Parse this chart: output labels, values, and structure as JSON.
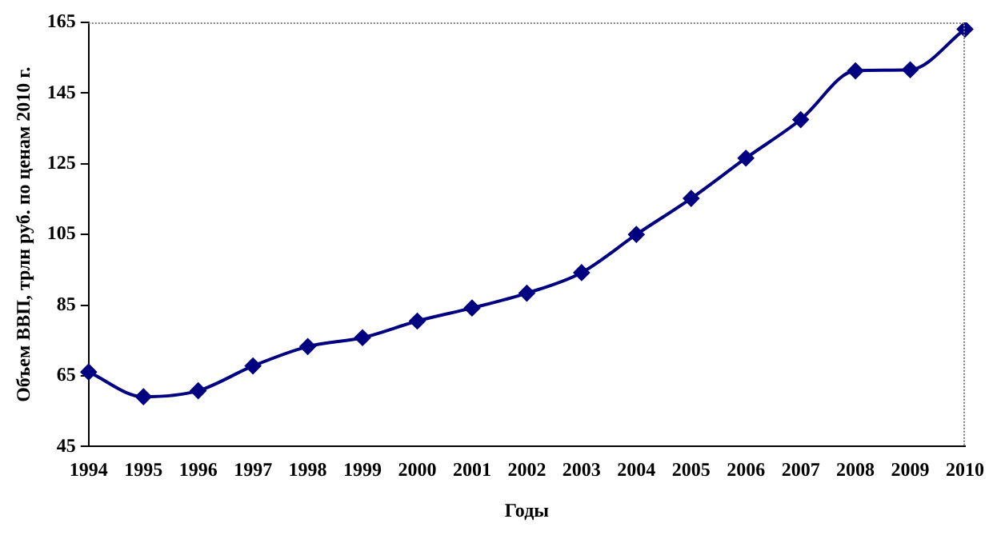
{
  "chart_data": {
    "type": "line",
    "xlabel": "Годы",
    "ylabel": "Объем ВВП, трлн руб. по ценам 2010 г.",
    "categories": [
      "1994",
      "1995",
      "1996",
      "1997",
      "1998",
      "1999",
      "2000",
      "2001",
      "2002",
      "2003",
      "2004",
      "2005",
      "2006",
      "2007",
      "2008",
      "2009",
      "2010"
    ],
    "series": [
      {
        "color": "#000080",
        "values": [
          66.1,
          59.1,
          60.8,
          67.8,
          73.3,
          75.8,
          80.5,
          84.2,
          88.4,
          94.2,
          105,
          115.2,
          126.6,
          137.5,
          151.3,
          151.6,
          163.1
        ]
      }
    ],
    "ylim": [
      45,
      165
    ],
    "yticks": [
      45,
      65,
      85,
      105,
      125,
      145,
      165
    ],
    "grid": false,
    "legend": false,
    "marker": "diamond",
    "line_style": "solid"
  }
}
